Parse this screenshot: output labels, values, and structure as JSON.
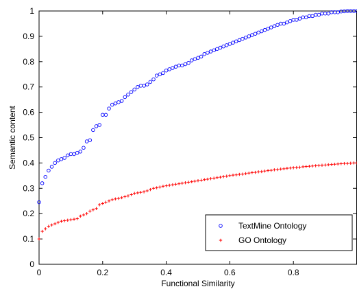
{
  "chart_data": {
    "type": "scatter",
    "title": "",
    "xlabel": "Functional Similarity",
    "ylabel": "Semantic content",
    "xlim": [
      0,
      1
    ],
    "ylim": [
      0,
      1
    ],
    "xticks": [
      0,
      0.2,
      0.4,
      0.6,
      0.8
    ],
    "xtick_labels": [
      "0",
      "0.2",
      "0.4",
      "0.6",
      "0.8"
    ],
    "yticks": [
      0,
      0.1,
      0.2,
      0.3,
      0.4,
      0.5,
      0.6,
      0.7,
      0.8,
      0.9,
      1
    ],
    "ytick_labels": [
      "0",
      "0.1",
      "0.2",
      "0.3",
      "0.4",
      "0.5",
      "0.6",
      "0.7",
      "0.8",
      "0.9",
      "1"
    ],
    "grid": false,
    "legend_position": "bottom-right",
    "series": [
      {
        "name": "TextMine Ontology",
        "marker": "circle",
        "color": "#0000ff",
        "points": [
          [
            0.0,
            0.245
          ],
          [
            0.01,
            0.32
          ],
          [
            0.02,
            0.345
          ],
          [
            0.03,
            0.37
          ],
          [
            0.04,
            0.385
          ],
          [
            0.05,
            0.4
          ],
          [
            0.06,
            0.41
          ],
          [
            0.07,
            0.415
          ],
          [
            0.08,
            0.42
          ],
          [
            0.09,
            0.43
          ],
          [
            0.1,
            0.435
          ],
          [
            0.11,
            0.435
          ],
          [
            0.12,
            0.44
          ],
          [
            0.13,
            0.445
          ],
          [
            0.14,
            0.46
          ],
          [
            0.15,
            0.485
          ],
          [
            0.16,
            0.49
          ],
          [
            0.17,
            0.53
          ],
          [
            0.18,
            0.545
          ],
          [
            0.19,
            0.55
          ],
          [
            0.2,
            0.59
          ],
          [
            0.21,
            0.59
          ],
          [
            0.22,
            0.615
          ],
          [
            0.23,
            0.63
          ],
          [
            0.24,
            0.635
          ],
          [
            0.25,
            0.64
          ],
          [
            0.26,
            0.645
          ],
          [
            0.27,
            0.66
          ],
          [
            0.28,
            0.67
          ],
          [
            0.29,
            0.68
          ],
          [
            0.3,
            0.69
          ],
          [
            0.31,
            0.7
          ],
          [
            0.32,
            0.705
          ],
          [
            0.33,
            0.705
          ],
          [
            0.34,
            0.71
          ],
          [
            0.35,
            0.72
          ],
          [
            0.36,
            0.73
          ],
          [
            0.37,
            0.745
          ],
          [
            0.38,
            0.75
          ],
          [
            0.39,
            0.755
          ],
          [
            0.4,
            0.765
          ],
          [
            0.41,
            0.77
          ],
          [
            0.42,
            0.775
          ],
          [
            0.43,
            0.78
          ],
          [
            0.44,
            0.785
          ],
          [
            0.45,
            0.785
          ],
          [
            0.46,
            0.79
          ],
          [
            0.47,
            0.795
          ],
          [
            0.48,
            0.805
          ],
          [
            0.49,
            0.81
          ],
          [
            0.5,
            0.815
          ],
          [
            0.51,
            0.82
          ],
          [
            0.52,
            0.83
          ],
          [
            0.53,
            0.835
          ],
          [
            0.54,
            0.84
          ],
          [
            0.55,
            0.845
          ],
          [
            0.56,
            0.85
          ],
          [
            0.57,
            0.855
          ],
          [
            0.58,
            0.86
          ],
          [
            0.59,
            0.865
          ],
          [
            0.6,
            0.87
          ],
          [
            0.61,
            0.875
          ],
          [
            0.62,
            0.88
          ],
          [
            0.63,
            0.885
          ],
          [
            0.64,
            0.89
          ],
          [
            0.65,
            0.895
          ],
          [
            0.66,
            0.9
          ],
          [
            0.67,
            0.905
          ],
          [
            0.68,
            0.91
          ],
          [
            0.69,
            0.915
          ],
          [
            0.7,
            0.92
          ],
          [
            0.71,
            0.925
          ],
          [
            0.72,
            0.93
          ],
          [
            0.73,
            0.935
          ],
          [
            0.74,
            0.94
          ],
          [
            0.75,
            0.945
          ],
          [
            0.76,
            0.95
          ],
          [
            0.77,
            0.95
          ],
          [
            0.78,
            0.955
          ],
          [
            0.79,
            0.96
          ],
          [
            0.8,
            0.965
          ],
          [
            0.81,
            0.965
          ],
          [
            0.82,
            0.97
          ],
          [
            0.83,
            0.975
          ],
          [
            0.84,
            0.975
          ],
          [
            0.85,
            0.98
          ],
          [
            0.86,
            0.98
          ],
          [
            0.87,
            0.985
          ],
          [
            0.88,
            0.985
          ],
          [
            0.89,
            0.99
          ],
          [
            0.9,
            0.99
          ],
          [
            0.91,
            0.99
          ],
          [
            0.92,
            0.995
          ],
          [
            0.93,
            0.995
          ],
          [
            0.94,
            0.995
          ],
          [
            0.95,
            0.998
          ],
          [
            0.96,
            0.999
          ],
          [
            0.97,
            1.0
          ],
          [
            0.98,
            1.0
          ],
          [
            0.99,
            1.0
          ],
          [
            1.0,
            1.0
          ]
        ]
      },
      {
        "name": "GO Ontology",
        "marker": "plus",
        "color": "#ff0000",
        "points": [
          [
            0.0,
            0.1
          ],
          [
            0.01,
            0.13
          ],
          [
            0.02,
            0.14
          ],
          [
            0.03,
            0.15
          ],
          [
            0.04,
            0.155
          ],
          [
            0.05,
            0.16
          ],
          [
            0.06,
            0.165
          ],
          [
            0.07,
            0.17
          ],
          [
            0.08,
            0.172
          ],
          [
            0.09,
            0.174
          ],
          [
            0.1,
            0.176
          ],
          [
            0.11,
            0.178
          ],
          [
            0.12,
            0.18
          ],
          [
            0.13,
            0.19
          ],
          [
            0.14,
            0.195
          ],
          [
            0.15,
            0.2
          ],
          [
            0.16,
            0.21
          ],
          [
            0.17,
            0.215
          ],
          [
            0.18,
            0.22
          ],
          [
            0.19,
            0.235
          ],
          [
            0.2,
            0.24
          ],
          [
            0.21,
            0.245
          ],
          [
            0.22,
            0.25
          ],
          [
            0.23,
            0.255
          ],
          [
            0.24,
            0.258
          ],
          [
            0.25,
            0.26
          ],
          [
            0.26,
            0.263
          ],
          [
            0.27,
            0.267
          ],
          [
            0.28,
            0.27
          ],
          [
            0.29,
            0.275
          ],
          [
            0.3,
            0.28
          ],
          [
            0.31,
            0.282
          ],
          [
            0.32,
            0.284
          ],
          [
            0.33,
            0.286
          ],
          [
            0.34,
            0.29
          ],
          [
            0.35,
            0.295
          ],
          [
            0.36,
            0.3
          ],
          [
            0.37,
            0.302
          ],
          [
            0.38,
            0.305
          ],
          [
            0.39,
            0.308
          ],
          [
            0.4,
            0.31
          ],
          [
            0.41,
            0.312
          ],
          [
            0.42,
            0.314
          ],
          [
            0.43,
            0.316
          ],
          [
            0.44,
            0.318
          ],
          [
            0.45,
            0.32
          ],
          [
            0.46,
            0.322
          ],
          [
            0.47,
            0.324
          ],
          [
            0.48,
            0.326
          ],
          [
            0.49,
            0.328
          ],
          [
            0.5,
            0.33
          ],
          [
            0.51,
            0.332
          ],
          [
            0.52,
            0.334
          ],
          [
            0.53,
            0.336
          ],
          [
            0.54,
            0.338
          ],
          [
            0.55,
            0.34
          ],
          [
            0.56,
            0.342
          ],
          [
            0.57,
            0.344
          ],
          [
            0.58,
            0.346
          ],
          [
            0.59,
            0.348
          ],
          [
            0.6,
            0.35
          ],
          [
            0.61,
            0.352
          ],
          [
            0.62,
            0.353
          ],
          [
            0.63,
            0.355
          ],
          [
            0.64,
            0.356
          ],
          [
            0.65,
            0.358
          ],
          [
            0.66,
            0.36
          ],
          [
            0.67,
            0.362
          ],
          [
            0.68,
            0.363
          ],
          [
            0.69,
            0.365
          ],
          [
            0.7,
            0.366
          ],
          [
            0.71,
            0.368
          ],
          [
            0.72,
            0.37
          ],
          [
            0.73,
            0.371
          ],
          [
            0.74,
            0.373
          ],
          [
            0.75,
            0.374
          ],
          [
            0.76,
            0.376
          ],
          [
            0.77,
            0.377
          ],
          [
            0.78,
            0.379
          ],
          [
            0.79,
            0.38
          ],
          [
            0.8,
            0.381
          ],
          [
            0.81,
            0.382
          ],
          [
            0.82,
            0.383
          ],
          [
            0.83,
            0.385
          ],
          [
            0.84,
            0.386
          ],
          [
            0.85,
            0.387
          ],
          [
            0.86,
            0.388
          ],
          [
            0.87,
            0.389
          ],
          [
            0.88,
            0.39
          ],
          [
            0.89,
            0.391
          ],
          [
            0.9,
            0.392
          ],
          [
            0.91,
            0.393
          ],
          [
            0.92,
            0.394
          ],
          [
            0.93,
            0.395
          ],
          [
            0.94,
            0.396
          ],
          [
            0.95,
            0.397
          ],
          [
            0.96,
            0.398
          ],
          [
            0.97,
            0.398
          ],
          [
            0.98,
            0.399
          ],
          [
            0.99,
            0.4
          ],
          [
            1.0,
            0.4
          ]
        ]
      }
    ]
  }
}
